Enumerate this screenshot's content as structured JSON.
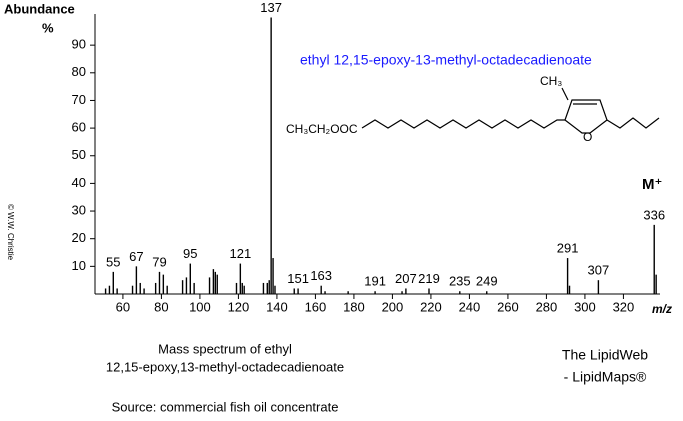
{
  "chart_data": {
    "type": "spectrum",
    "y_label": "Abundance",
    "y_unit": "%",
    "x_label": "m/z",
    "compound": "ethyl 12,15-epoxy-13-methyl-octadecadienoate",
    "structure": {
      "methyl": "CH₃",
      "ester": "CH₃CH₂OOC",
      "ring_oxygen": "O"
    },
    "molecular_ion": "M⁺",
    "caption": [
      "Mass spectrum of ethyl",
      "12,15-epoxy,13-methyl-octadecadienoate"
    ],
    "source": "Source: commercial fish oil concentrate",
    "brand": [
      "The LipidWeb",
      "- LipidMaps®"
    ],
    "copyright": "© W.W. Christie",
    "color": "#000000",
    "xlim": [
      45.5,
      339
    ],
    "ylim": [
      0,
      100
    ],
    "xticks": [
      60,
      80,
      100,
      120,
      140,
      160,
      180,
      200,
      220,
      240,
      260,
      280,
      300,
      320
    ],
    "yticks": [
      10,
      20,
      30,
      40,
      50,
      60,
      70,
      80,
      90
    ],
    "peaks": {
      "x": [
        55,
        67,
        79,
        95,
        121,
        137,
        151,
        163,
        191,
        207,
        219,
        235,
        249,
        291,
        307,
        336
      ],
      "values": [
        8,
        10,
        8,
        11,
        11,
        100,
        2,
        3,
        1,
        2,
        2,
        1,
        1,
        13,
        5,
        25
      ]
    },
    "minor_peaks": {
      "x": [
        51,
        53,
        57,
        65,
        69,
        71,
        77,
        81,
        83,
        91,
        93,
        97,
        105,
        107,
        108,
        109,
        119,
        122,
        123,
        133,
        135,
        136,
        138,
        139,
        149,
        165,
        177,
        205,
        292,
        337
      ],
      "values": [
        2,
        3,
        2,
        3,
        4,
        2,
        4,
        7,
        3,
        5,
        6,
        4,
        6,
        9,
        8,
        7,
        4,
        4,
        3,
        4,
        4,
        5,
        13,
        3,
        2,
        1,
        1,
        1,
        3,
        7
      ]
    }
  }
}
